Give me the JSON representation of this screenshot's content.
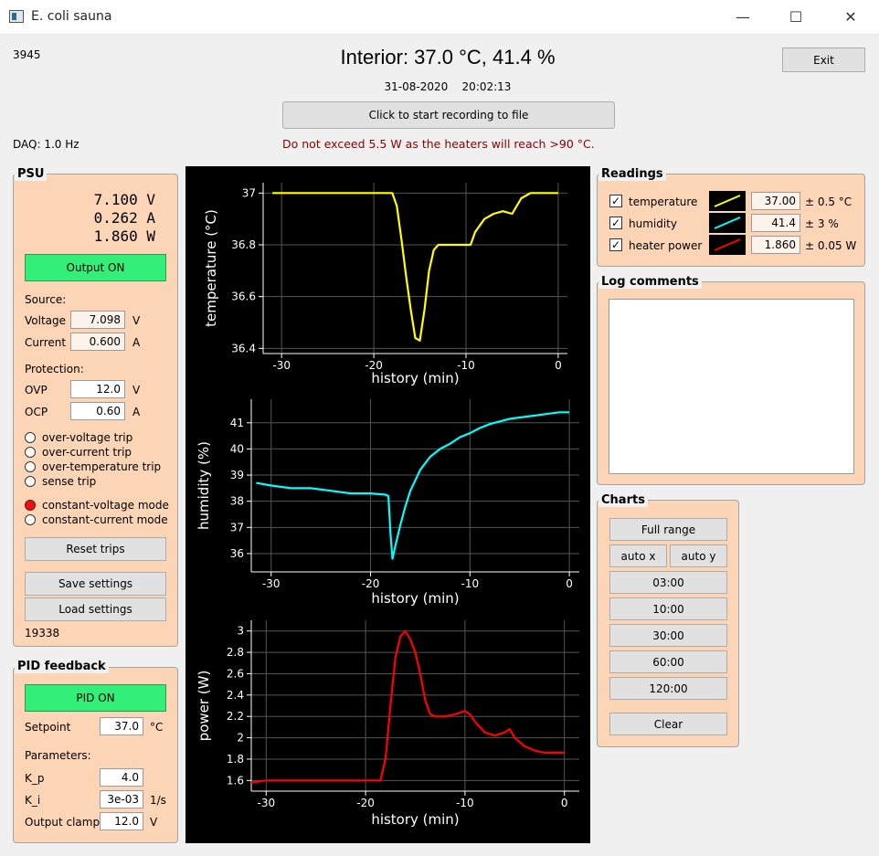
{
  "window": {
    "title": "E. coli sauna",
    "minimize": "—",
    "maximize": "☐",
    "close": "✕"
  },
  "header": {
    "counter": "3945",
    "interior": "Interior:  37.0 °C,  41.4 %",
    "date": "31-08-2020",
    "time": "20:02:13",
    "record_button": "Click to start recording to file",
    "daq": "DAQ: 1.0 Hz",
    "warning": "Do not exceed 5.5 W as the heaters will reach >90 °C.",
    "exit_button": "Exit",
    "warning_color": "#880000"
  },
  "psu": {
    "title": "PSU",
    "voltage_readout": "7.100  V",
    "current_readout": "0.262  A",
    "power_readout": "1.860  W",
    "output_button": "Output ON",
    "source_label": "Source:",
    "voltage_label": "Voltage",
    "voltage_value": "7.098",
    "voltage_unit": "V",
    "current_label": "Current",
    "current_value": "0.600",
    "current_unit": "A",
    "protection_label": "Protection:",
    "ovp_label": "OVP",
    "ovp_value": "12.0",
    "ovp_unit": "V",
    "ocp_label": "OCP",
    "ocp_value": "0.60",
    "ocp_unit": "A",
    "trips": [
      "over-voltage trip",
      "over-current trip",
      "over-temperature trip",
      "sense trip"
    ],
    "cv_mode": "constant-voltage mode",
    "cc_mode": "constant-current mode",
    "reset_button": "Reset trips",
    "save_button": "Save settings",
    "load_button": "Load settings",
    "counter": "19338"
  },
  "pid": {
    "title": "PID feedback",
    "pid_button": "PID ON",
    "setpoint_label": "Setpoint",
    "setpoint_value": "37.0",
    "setpoint_unit": "°C",
    "parameters_label": "Parameters:",
    "kp_label": "K_p",
    "kp_value": "4.0",
    "ki_label": "K_i",
    "ki_value": "3e-03",
    "ki_unit": "1/s",
    "clamp_label": "Output clamp",
    "clamp_value": "12.0",
    "clamp_unit": "V"
  },
  "readings": {
    "title": "Readings",
    "rows": [
      {
        "label": "temperature",
        "value": "37.00",
        "unc": "± 0.5 °C",
        "color": "#ffff00"
      },
      {
        "label": "humidity",
        "value": "41.4",
        "unc": "± 3 %",
        "color": "#00ffff"
      },
      {
        "label": "heater power",
        "value": "1.860",
        "unc": "± 0.05 W",
        "color": "#ff0000"
      }
    ]
  },
  "log": {
    "title": "Log comments",
    "text": ""
  },
  "charts": {
    "title": "Charts",
    "full_range": "Full range",
    "auto_x": "auto x",
    "auto_y": "auto y",
    "ranges": [
      "03:00",
      "10:00",
      "30:00",
      "60:00",
      "120:00"
    ],
    "clear": "Clear"
  },
  "chart_data": [
    {
      "type": "line",
      "ylabel": "temperature (°C)",
      "xlabel": "history (min)",
      "xlim": [
        -32,
        1
      ],
      "ylim": [
        36.38,
        37.04
      ],
      "xticks": [
        -30,
        -20,
        -10,
        0
      ],
      "yticks": [
        36.4,
        36.6,
        36.8,
        37
      ],
      "color": "#ffff00",
      "x": [
        -31,
        -30,
        -28,
        -25,
        -22,
        -19.5,
        -18,
        -17.5,
        -17,
        -16.5,
        -16,
        -15.5,
        -15,
        -14.5,
        -14,
        -13.5,
        -13,
        -12,
        -11,
        -10,
        -9.5,
        -9,
        -8,
        -7,
        -6,
        -5,
        -4.5,
        -4,
        -3,
        -2,
        -1,
        0
      ],
      "y": [
        37.0,
        37.0,
        37.0,
        37.0,
        37.0,
        37.0,
        37.0,
        36.95,
        36.82,
        36.68,
        36.55,
        36.44,
        36.43,
        36.55,
        36.7,
        36.78,
        36.8,
        36.8,
        36.8,
        36.8,
        36.8,
        36.85,
        36.9,
        36.92,
        36.93,
        36.92,
        36.95,
        36.98,
        37.0,
        37.0,
        37.0,
        37.0
      ]
    },
    {
      "type": "line",
      "ylabel": "humidity (%)",
      "xlabel": "history (min)",
      "xlim": [
        -32,
        1
      ],
      "ylim": [
        35.3,
        41.9
      ],
      "xticks": [
        -30,
        -20,
        -10,
        0
      ],
      "yticks": [
        36,
        37,
        38,
        39,
        40,
        41
      ],
      "color": "#00ffff",
      "x": [
        -31.5,
        -30,
        -28,
        -26,
        -24,
        -22,
        -20,
        -18.5,
        -18.2,
        -18,
        -17.8,
        -17.5,
        -17,
        -16.5,
        -16,
        -15,
        -14,
        -13,
        -12,
        -11,
        -10,
        -9,
        -8,
        -7,
        -6,
        -5,
        -4,
        -3,
        -2,
        -1,
        0
      ],
      "y": [
        38.7,
        38.6,
        38.5,
        38.5,
        38.4,
        38.3,
        38.3,
        38.25,
        38.2,
        36.8,
        35.8,
        36.3,
        37.1,
        37.8,
        38.4,
        39.2,
        39.7,
        40.0,
        40.2,
        40.45,
        40.6,
        40.8,
        40.95,
        41.05,
        41.15,
        41.2,
        41.25,
        41.3,
        41.35,
        41.4,
        41.4
      ]
    },
    {
      "type": "line",
      "ylabel": "power (W)",
      "xlabel": "history (min)",
      "xlim": [
        -31.5,
        1.5
      ],
      "ylim": [
        1.5,
        3.1
      ],
      "xticks": [
        -30,
        -20,
        -10,
        0
      ],
      "yticks": [
        1.6,
        1.8,
        2,
        2.2,
        2.4,
        2.6,
        2.8,
        3
      ],
      "color": "#ff0000",
      "x": [
        -31.5,
        -30,
        -25,
        -20,
        -18.5,
        -18,
        -17.5,
        -17,
        -16.5,
        -16,
        -15.5,
        -15,
        -14.5,
        -14,
        -13.5,
        -13,
        -12,
        -11,
        -10,
        -9.5,
        -9,
        -8,
        -7,
        -6,
        -5.5,
        -5,
        -4,
        -3,
        -2,
        -1,
        0
      ],
      "y": [
        1.58,
        1.6,
        1.6,
        1.6,
        1.6,
        1.8,
        2.3,
        2.75,
        2.95,
        3.0,
        2.92,
        2.8,
        2.6,
        2.35,
        2.22,
        2.2,
        2.2,
        2.22,
        2.25,
        2.22,
        2.15,
        2.05,
        2.02,
        2.05,
        2.08,
        2.0,
        1.92,
        1.88,
        1.86,
        1.86,
        1.86
      ]
    }
  ]
}
